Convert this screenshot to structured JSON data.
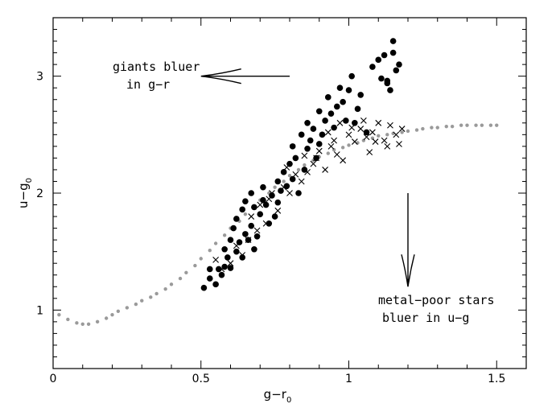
{
  "chart_data": {
    "type": "scatter",
    "title": "",
    "xlabel": "g−r",
    "xlabel_sub": "0",
    "ylabel": "u−g",
    "ylabel_sub": "0",
    "xlim": [
      0,
      1.6
    ],
    "ylim": [
      0.5,
      3.5
    ],
    "xticks": [
      0,
      0.5,
      1,
      1.5
    ],
    "xtick_labels": [
      "0",
      "0.5",
      "1",
      "1.5"
    ],
    "yticks": [
      1,
      2,
      3
    ],
    "ytick_labels": [
      "1",
      "2",
      "3"
    ],
    "grid": false,
    "legend": "none",
    "annotations": [
      {
        "lines": [
          "giants bluer",
          "in g−r"
        ],
        "arrow": "left",
        "arrow_from": [
          0.8,
          3.0
        ],
        "arrow_to": [
          0.5,
          3.0
        ]
      },
      {
        "lines": [
          "metal−poor stars",
          "bluer in u−g"
        ],
        "arrow": "down",
        "arrow_from": [
          1.2,
          2.0
        ],
        "arrow_to": [
          1.2,
          1.2
        ]
      }
    ],
    "series": [
      {
        "marker": "gray-dots",
        "color": "#9a9a9a",
        "description_values": "dense locus of field stars",
        "x": [
          0.02,
          0.05,
          0.08,
          0.1,
          0.12,
          0.15,
          0.18,
          0.2,
          0.22,
          0.25,
          0.28,
          0.3,
          0.33,
          0.35,
          0.38,
          0.4,
          0.43,
          0.45,
          0.48,
          0.5,
          0.53,
          0.55,
          0.58,
          0.6,
          0.63,
          0.65,
          0.68,
          0.7,
          0.73,
          0.75,
          0.78,
          0.8,
          0.83,
          0.85,
          0.88,
          0.9,
          0.93,
          0.95,
          0.98,
          1.0,
          1.03,
          1.05,
          1.08,
          1.1,
          1.13,
          1.15,
          1.18,
          1.2,
          1.23,
          1.25,
          1.28,
          1.3,
          1.33,
          1.35,
          1.38,
          1.4,
          1.43,
          1.45,
          1.48,
          1.5
        ],
        "y": [
          0.96,
          0.92,
          0.89,
          0.88,
          0.88,
          0.9,
          0.93,
          0.96,
          0.99,
          1.02,
          1.05,
          1.08,
          1.11,
          1.14,
          1.18,
          1.22,
          1.27,
          1.32,
          1.38,
          1.44,
          1.51,
          1.57,
          1.64,
          1.7,
          1.76,
          1.82,
          1.88,
          1.94,
          2.0,
          2.05,
          2.1,
          2.15,
          2.2,
          2.24,
          2.28,
          2.31,
          2.34,
          2.37,
          2.39,
          2.41,
          2.43,
          2.45,
          2.47,
          2.49,
          2.5,
          2.51,
          2.52,
          2.53,
          2.54,
          2.55,
          2.56,
          2.56,
          2.57,
          2.57,
          2.58,
          2.58,
          2.58,
          2.58,
          2.58,
          2.58
        ]
      },
      {
        "marker": "filled-circle",
        "color": "#000000",
        "description_values": "filled circles",
        "x": [
          0.51,
          0.53,
          0.53,
          0.55,
          0.56,
          0.57,
          0.58,
          0.58,
          0.59,
          0.6,
          0.6,
          0.61,
          0.62,
          0.62,
          0.63,
          0.64,
          0.64,
          0.65,
          0.65,
          0.66,
          0.67,
          0.67,
          0.68,
          0.68,
          0.69,
          0.7,
          0.71,
          0.71,
          0.72,
          0.73,
          0.74,
          0.75,
          0.76,
          0.76,
          0.77,
          0.78,
          0.79,
          0.8,
          0.81,
          0.81,
          0.82,
          0.83,
          0.84,
          0.85,
          0.86,
          0.86,
          0.87,
          0.88,
          0.89,
          0.9,
          0.9,
          0.91,
          0.92,
          0.93,
          0.94,
          0.95,
          0.96,
          0.97,
          0.98,
          0.99,
          1.0,
          1.01,
          1.02,
          1.03,
          1.04,
          1.06,
          1.08,
          1.1,
          1.11,
          1.12,
          1.13,
          1.14,
          1.15,
          1.16,
          1.17,
          1.15,
          1.13
        ],
        "y": [
          1.19,
          1.27,
          1.35,
          1.22,
          1.35,
          1.3,
          1.37,
          1.52,
          1.45,
          1.36,
          1.6,
          1.7,
          1.5,
          1.78,
          1.58,
          1.45,
          1.86,
          1.65,
          1.93,
          1.6,
          1.72,
          2.0,
          1.88,
          1.52,
          1.63,
          1.82,
          1.94,
          2.05,
          1.9,
          1.74,
          1.98,
          1.8,
          1.92,
          2.1,
          2.02,
          2.18,
          2.06,
          2.25,
          2.4,
          2.12,
          2.3,
          2.0,
          2.5,
          2.2,
          2.38,
          2.6,
          2.45,
          2.55,
          2.3,
          2.7,
          2.42,
          2.5,
          2.62,
          2.82,
          2.68,
          2.56,
          2.74,
          2.9,
          2.78,
          2.62,
          2.88,
          3.0,
          2.6,
          2.72,
          2.84,
          2.52,
          3.08,
          3.14,
          2.98,
          3.18,
          2.94,
          2.88,
          3.3,
          3.05,
          3.1,
          3.2,
          2.96
        ]
      },
      {
        "marker": "cross",
        "color": "#000000",
        "description_values": "crosses",
        "x": [
          0.55,
          0.57,
          0.6,
          0.62,
          0.64,
          0.66,
          0.67,
          0.69,
          0.7,
          0.72,
          0.74,
          0.76,
          0.78,
          0.8,
          0.82,
          0.84,
          0.86,
          0.88,
          0.9,
          0.92,
          0.94,
          0.96,
          0.98,
          1.0,
          1.02,
          1.04,
          1.06,
          1.08,
          1.1,
          1.12,
          1.14,
          1.16,
          1.18,
          0.93,
          0.97,
          1.01,
          1.05,
          1.09,
          1.13,
          1.17,
          0.89,
          0.85,
          0.79,
          0.73,
          0.95,
          1.07
        ],
        "y": [
          1.43,
          1.35,
          1.4,
          1.55,
          1.47,
          1.6,
          1.8,
          1.68,
          1.9,
          1.74,
          2.0,
          1.85,
          2.05,
          2.0,
          2.16,
          2.1,
          2.18,
          2.25,
          2.36,
          2.2,
          2.4,
          2.33,
          2.28,
          2.5,
          2.44,
          2.55,
          2.48,
          2.52,
          2.6,
          2.45,
          2.58,
          2.5,
          2.55,
          2.52,
          2.6,
          2.56,
          2.62,
          2.44,
          2.4,
          2.42,
          2.3,
          2.32,
          2.22,
          1.95,
          2.45,
          2.35
        ]
      }
    ]
  }
}
